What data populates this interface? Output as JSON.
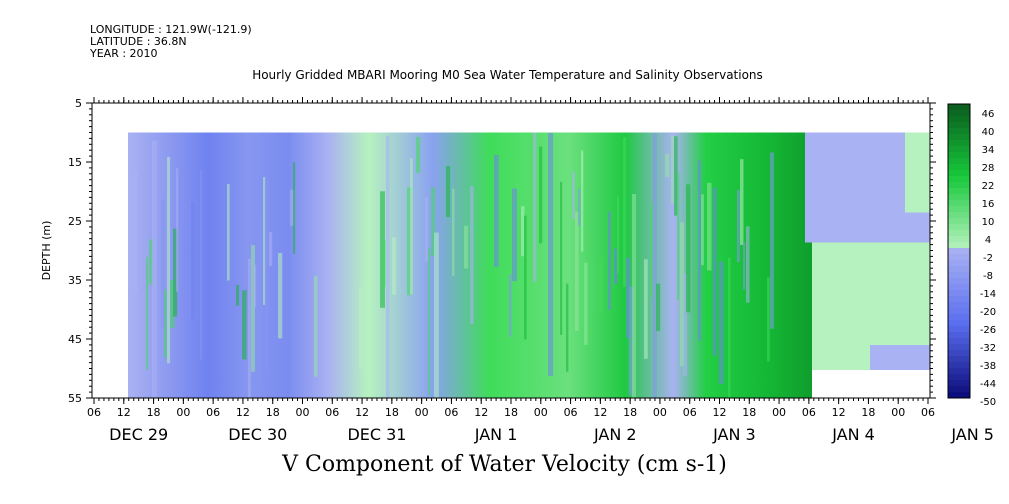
{
  "header": {
    "longitude": "LONGITUDE : 121.9W(-121.9)",
    "latitude": "LATITUDE : 36.8N",
    "year": "YEAR : 2010"
  },
  "chart_data": {
    "type": "heatmap",
    "title": "Hourly Gridded MBARI Mooring M0 Sea Water Temperature and Salinity Observations",
    "xlabel": "V Component of Water Velocity (cm s-1)",
    "ylabel": "DEPTH (m)",
    "y_ticks": [
      5,
      15,
      25,
      35,
      45,
      55
    ],
    "ylim": [
      55,
      5
    ],
    "x_hour_ticks": [
      "06",
      "12",
      "18",
      "00",
      "06",
      "12",
      "18",
      "00",
      "06",
      "12",
      "18",
      "00",
      "06",
      "12",
      "18",
      "00",
      "06",
      "12",
      "18",
      "00",
      "06",
      "12",
      "18",
      "00",
      "06",
      "12",
      "18",
      "00",
      "06"
    ],
    "x_day_labels": [
      "DEC 29",
      "DEC 30",
      "DEC 31",
      "JAN  1",
      "JAN  2",
      "JAN  3",
      "JAN  4",
      "JAN  5"
    ],
    "colorbar_levels": [
      48,
      46,
      44,
      42,
      40,
      38,
      36,
      34,
      32,
      30,
      28,
      26,
      24,
      22,
      20,
      18,
      16,
      14,
      12,
      10,
      8,
      6,
      4,
      2,
      0,
      -2,
      -4,
      -6,
      -8,
      -10,
      -12,
      -14,
      -16,
      -18,
      -20,
      -22,
      -24,
      -26,
      -28,
      -30,
      -32,
      -34,
      -36,
      -38,
      -40,
      -42,
      -44,
      -46,
      -48,
      -50
    ],
    "colorbar_labels": [
      "46",
      "40",
      "34",
      "28",
      "22",
      "16",
      "10",
      "4",
      "-2",
      "-8",
      "-14",
      "-20",
      "-26",
      "-32",
      "-38",
      "-44",
      "-50"
    ],
    "colors": {
      "positive_dark": "#0a5a1e",
      "positive_mid": "#16c83a",
      "positive_light": "#b6f2bf",
      "negative_light": "#a9b2f2",
      "negative_mid": "#5a6ff0",
      "negative_dark": "#0a0a78"
    },
    "grid": false
  }
}
